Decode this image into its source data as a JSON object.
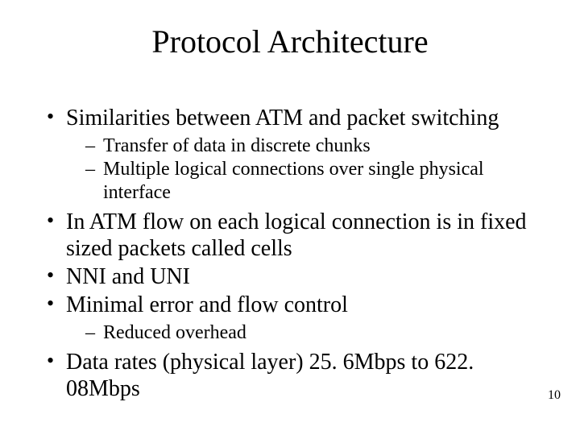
{
  "type": "slide",
  "background_color": "#ffffff",
  "text_color": "#000000",
  "font_family": "Times New Roman",
  "title": {
    "text": "Protocol Architecture",
    "fontsize": 40,
    "align": "center"
  },
  "body_fontsize_level1": 28,
  "body_fontsize_level2": 24,
  "bullets": [
    {
      "text": "Similarities between ATM and packet switching",
      "children": [
        {
          "text": "Transfer of data in discrete chunks"
        },
        {
          "text": "Multiple logical connections over single physical interface"
        }
      ]
    },
    {
      "text": "In ATM flow on each logical connection is in fixed sized packets called cells"
    },
    {
      "text": "NNI and UNI"
    },
    {
      "text": "Minimal error and flow control",
      "children": [
        {
          "text": "Reduced overhead"
        }
      ]
    },
    {
      "text": "Data rates (physical layer) 25. 6Mbps to 622. 08Mbps"
    }
  ],
  "page_number": "10"
}
